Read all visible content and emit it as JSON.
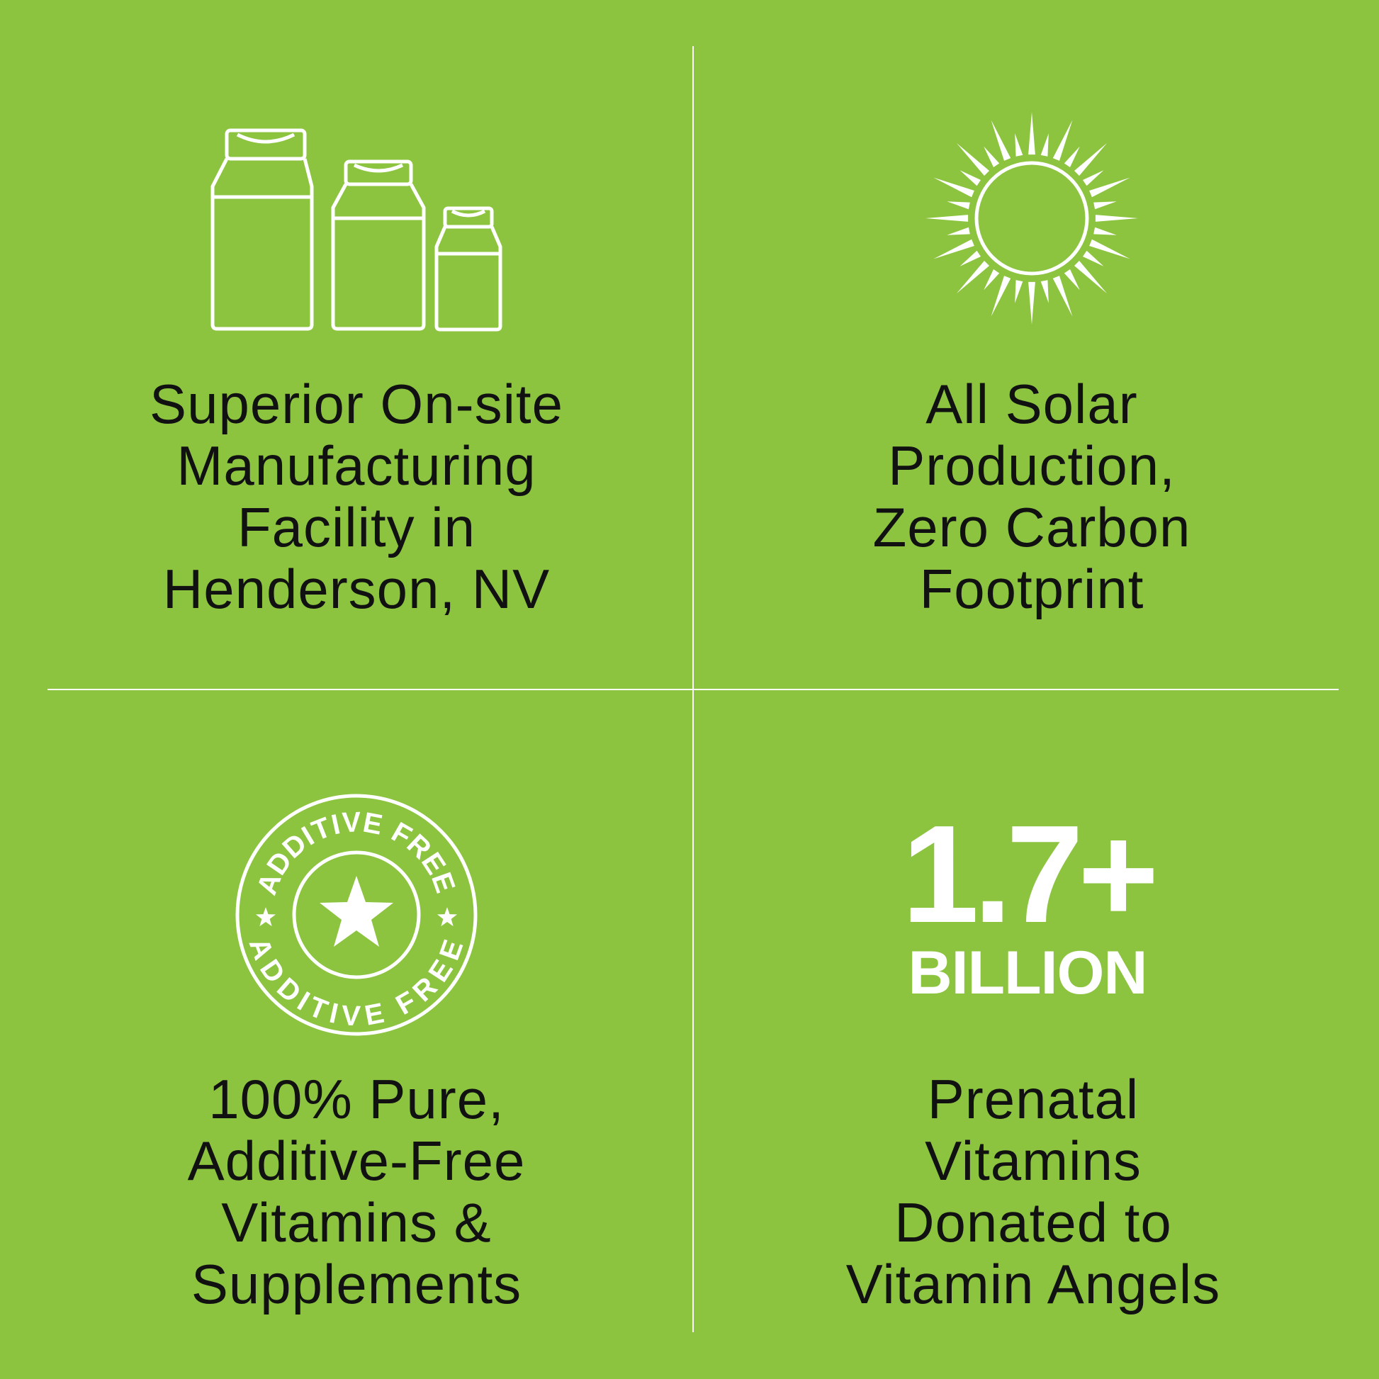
{
  "colors": {
    "background": "#8cc43f",
    "icon": "#ffffff",
    "text": "#111111"
  },
  "quadrants": [
    {
      "icon": "jars-icon",
      "lines": [
        "Superior On-site",
        "Manufacturing",
        "Facility in",
        "Henderson, NV"
      ]
    },
    {
      "icon": "sun-icon",
      "lines": [
        "All Solar",
        "Production,",
        "Zero Carbon",
        "Footprint"
      ]
    },
    {
      "icon": "additive-free-badge-icon",
      "badge_text_top": "ADDITIVE FREE",
      "badge_text_bottom": "ADDITIVE FREE",
      "lines": [
        "100% Pure,",
        "Additive-Free",
        "Vitamins &",
        "Supplements"
      ]
    },
    {
      "stat_value": "1.7+",
      "stat_unit": "BILLION",
      "lines": [
        "Prenatal",
        "Vitamins",
        "Donated to",
        "Vitamin Angels"
      ]
    }
  ]
}
